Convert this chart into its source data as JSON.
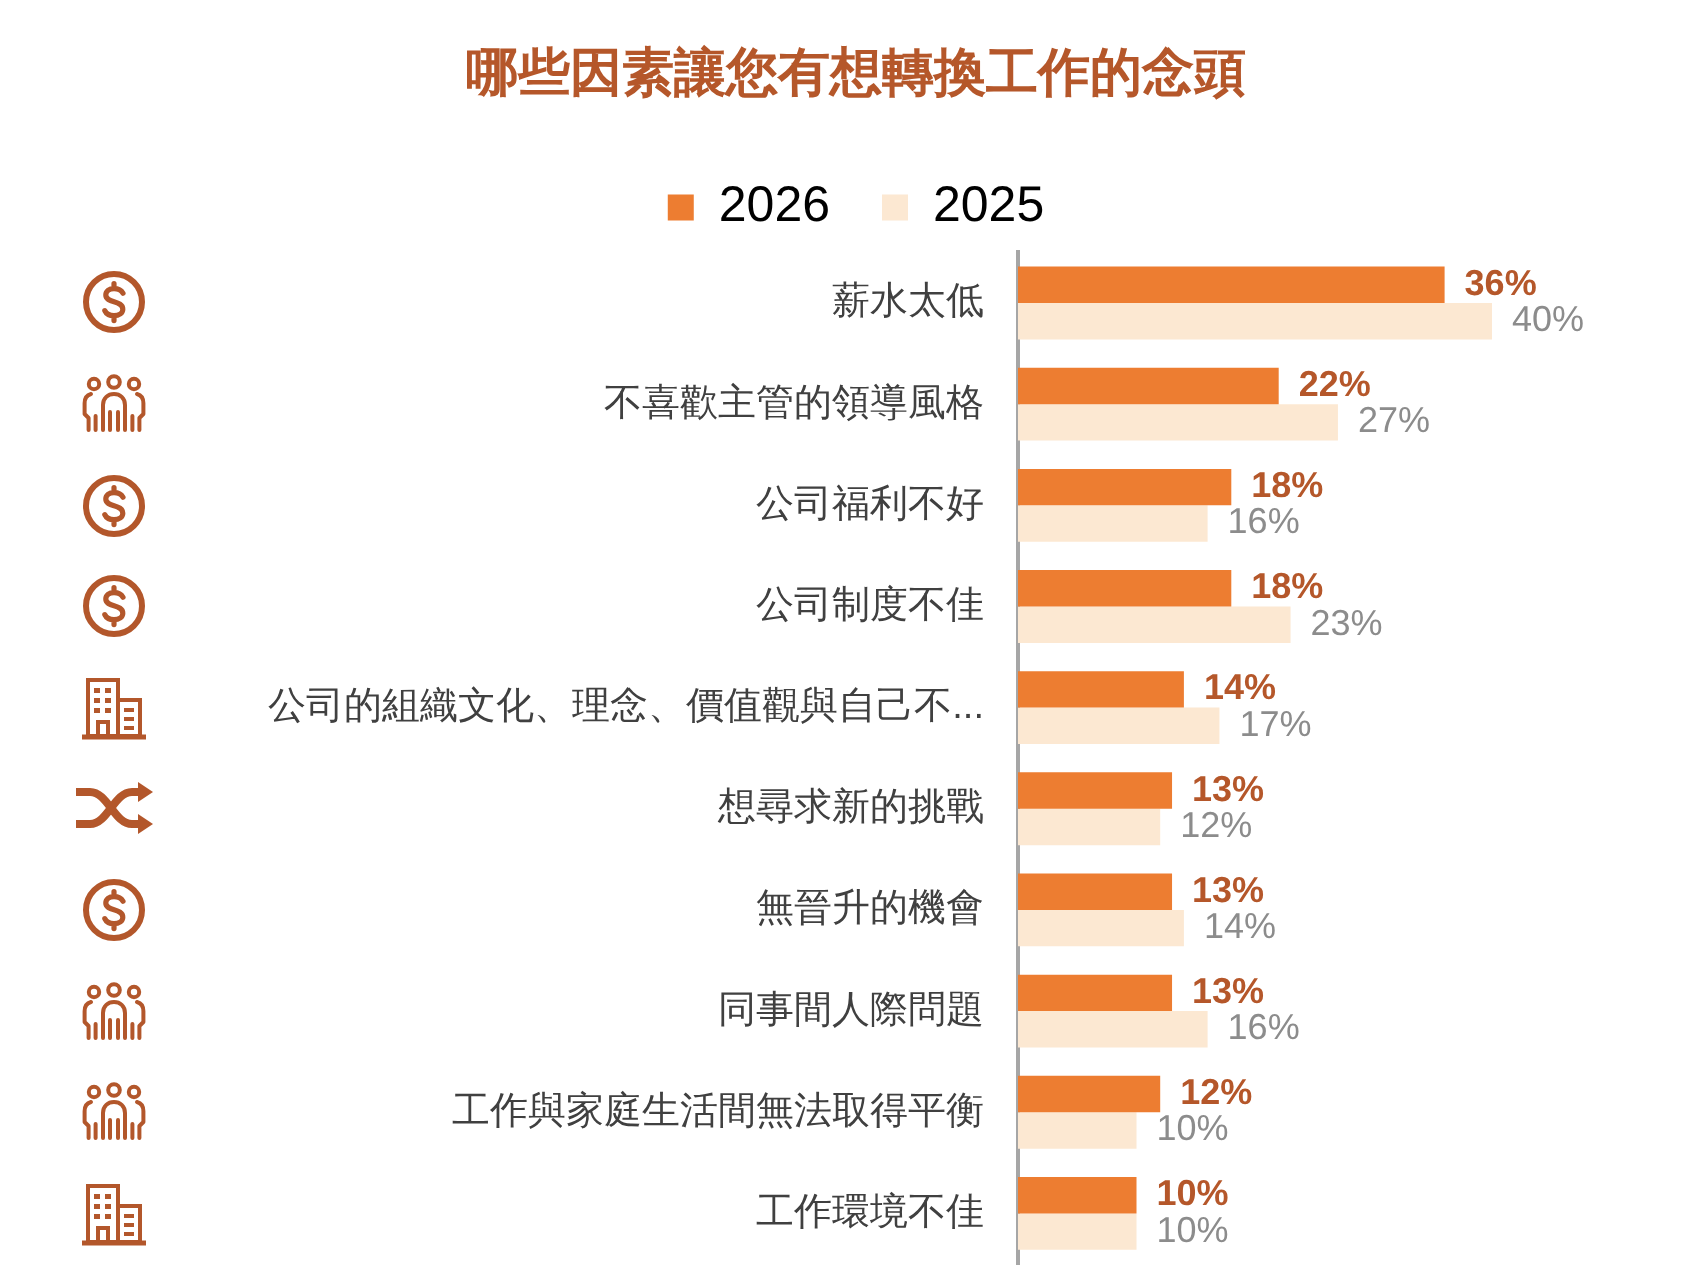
{
  "chart_data": {
    "type": "bar",
    "orientation": "horizontal",
    "title": "哪些因素讓您有想轉換工作的念頭",
    "categories": [
      "薪水太低",
      "不喜歡主管的領導風格",
      "公司福利不好",
      "公司制度不佳",
      "公司的組織文化、理念、價值觀與自己不...",
      "想尋求新的挑戰",
      "無晉升的機會",
      "同事間人際問題",
      "工作與家庭生活間無法取得平衡",
      "工作環境不佳"
    ],
    "series": [
      {
        "name": "2026",
        "color": "#ed7d31",
        "values": [
          36,
          22,
          18,
          18,
          14,
          13,
          13,
          13,
          12,
          10
        ],
        "value_labels": [
          "36%",
          "22%",
          "18%",
          "18%",
          "14%",
          "13%",
          "13%",
          "13%",
          "12%",
          "10%"
        ]
      },
      {
        "name": "2025",
        "color": "#fce8d2",
        "values": [
          40,
          27,
          16,
          23,
          17,
          12,
          14,
          16,
          10,
          10
        ],
        "value_labels": [
          "40%",
          "27%",
          "16%",
          "23%",
          "17%",
          "12%",
          "14%",
          "16%",
          "10%",
          "10%"
        ]
      }
    ],
    "legend": "top",
    "tick_labels": "y"
  }
}
